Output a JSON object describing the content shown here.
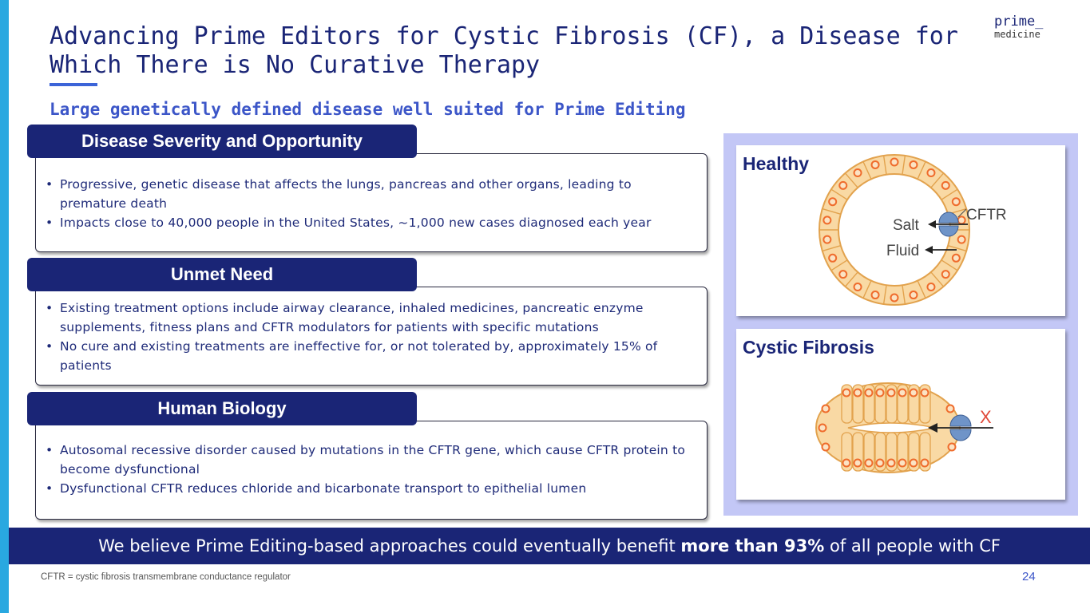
{
  "slide": {
    "title": "Advancing Prime Editors for Cystic Fibrosis (CF), a Disease for Which There is No Curative Therapy",
    "subtitle": "Large genetically defined disease well suited for Prime Editing",
    "logo": {
      "top": "prime_",
      "bottom": "medicine"
    }
  },
  "sections": [
    {
      "heading": "Disease Severity and Opportunity",
      "bullets": [
        "Progressive, genetic disease that affects the lungs, pancreas and other organs, leading to premature death",
        "Impacts close to 40,000 people in the United States, ~1,000 new cases diagnosed each year"
      ]
    },
    {
      "heading": "Unmet Need",
      "bullets": [
        "Existing treatment options include airway clearance, inhaled medicines, pancreatic enzyme supplements, fitness plans and CFTR modulators for patients with specific mutations",
        "No cure and existing treatments are ineffective for, or not tolerated by, approximately 15% of patients"
      ]
    },
    {
      "heading": "Human Biology",
      "bullets": [
        "Autosomal recessive disorder caused by mutations in the CFTR gene, which cause CFTR protein to become dysfunctional",
        "Dysfunctional CFTR reduces chloride and bicarbonate transport to epithelial lumen"
      ]
    }
  ],
  "bullet_symbol": "•",
  "diagram": {
    "healthy": {
      "label": "Healthy",
      "cftr_label": "CFTR",
      "salt_label": "Salt",
      "fluid_label": "Fluid"
    },
    "cf": {
      "label": "Cystic Fibrosis",
      "blocked_mark": "X"
    },
    "colors": {
      "cell_fill": "#f9d9a4",
      "cell_stroke": "#e2a24d",
      "nucleus": "#ef6c2c",
      "channel": "#6f94c8"
    }
  },
  "banner": {
    "prefix": "We believe Prime Editing-based approaches could eventually benefit ",
    "emphasis": "more than 93%",
    "suffix": " of all people with CF"
  },
  "footnote": "CFTR = cystic fibrosis transmembrane conductance regulator",
  "page_number": "24"
}
